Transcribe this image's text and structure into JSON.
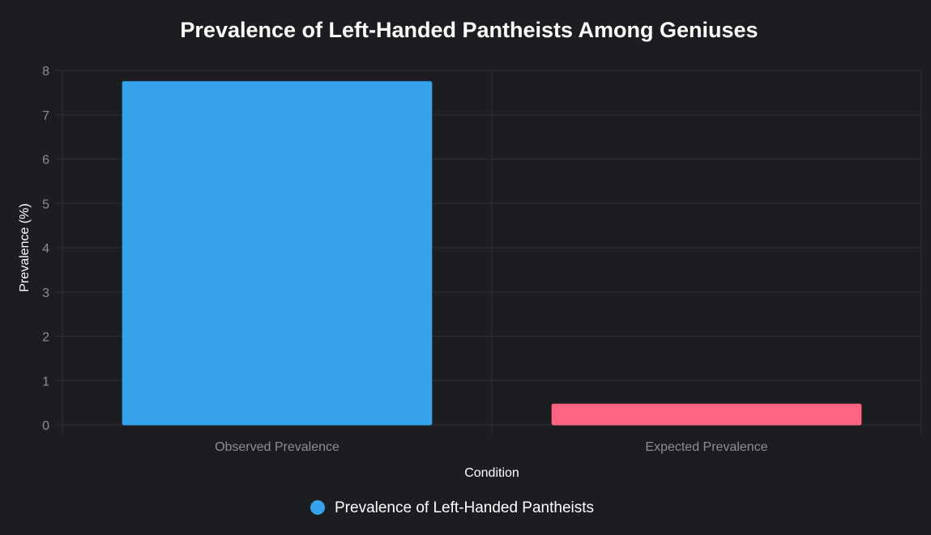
{
  "chart_data": {
    "type": "bar",
    "title": "Prevalence of Left-Handed Pantheists Among Geniuses",
    "xlabel": "Condition",
    "ylabel": "Prevalence (%)",
    "categories": [
      "Observed Prevalence",
      "Expected Prevalence"
    ],
    "series": [
      {
        "name": "Prevalence of Left-Handed Pantheists",
        "values": [
          7.75,
          0.47
        ],
        "colors": [
          "#36a2eb",
          "#ff6384"
        ]
      }
    ],
    "ylim": [
      0,
      8
    ],
    "yticks": [
      "0",
      "1",
      "2",
      "3",
      "4",
      "5",
      "6",
      "7",
      "8"
    ],
    "grid": true,
    "legend_position": "bottom",
    "legend_marker_color": "#36a2eb"
  }
}
